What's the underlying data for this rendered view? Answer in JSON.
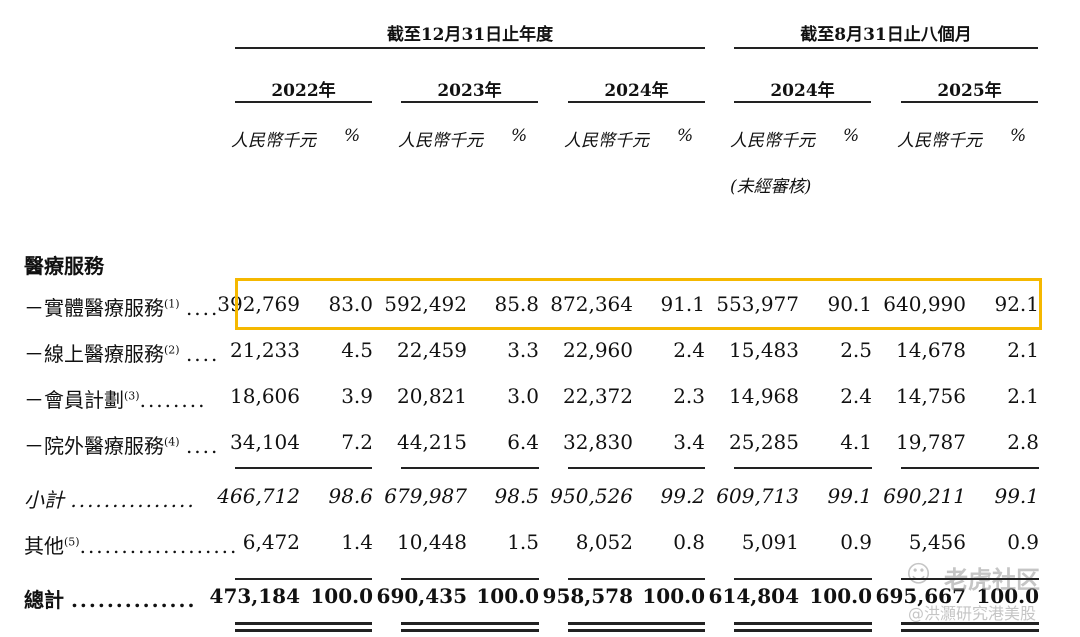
{
  "header": {
    "group1": "截至12月31日止年度",
    "group2": "截至8月31日止八個月"
  },
  "years": [
    "2022年",
    "2023年",
    "2024年",
    "2024年",
    "2025年"
  ],
  "units": {
    "rmb": "人民幣千元",
    "pct": "%",
    "unaudited": "(未經審核)"
  },
  "section_title": "醫療服務",
  "rows": [
    {
      "label": "－實體醫療服務",
      "note": "(1)",
      "dots": "....",
      "values": [
        "392,769",
        "83.0",
        "592,492",
        "85.8",
        "872,364",
        "91.1",
        "553,977",
        "90.1",
        "640,990",
        "92.1"
      ]
    },
    {
      "label": "－線上醫療服務",
      "note": "(2)",
      "dots": "....",
      "values": [
        "21,233",
        "4.5",
        "22,459",
        "3.3",
        "22,960",
        "2.4",
        "15,483",
        "2.5",
        "14,678",
        "2.1"
      ]
    },
    {
      "label": "－會員計劃",
      "note": "(3)",
      "dots": "........",
      "values": [
        "18,606",
        "3.9",
        "20,821",
        "3.0",
        "22,372",
        "2.3",
        "14,968",
        "2.4",
        "14,756",
        "2.1"
      ]
    },
    {
      "label": "－院外醫療服務",
      "note": "(4)",
      "dots": "....",
      "values": [
        "34,104",
        "7.2",
        "44,215",
        "6.4",
        "32,830",
        "3.4",
        "25,285",
        "4.1",
        "19,787",
        "2.8"
      ]
    },
    {
      "label": "小計",
      "note": "",
      "dots": "...............",
      "values": [
        "466,712",
        "98.6",
        "679,987",
        "98.5",
        "950,526",
        "99.2",
        "609,713",
        "99.1",
        "690,211",
        "99.1"
      ]
    },
    {
      "label": "其他",
      "note": "(5)",
      "dots": "...................",
      "values": [
        "6,472",
        "1.4",
        "10,448",
        "1.5",
        "8,052",
        "0.8",
        "5,091",
        "0.9",
        "5,456",
        "0.9"
      ]
    },
    {
      "label": "總計",
      "note": "",
      "dots": "..............",
      "values": [
        "473,184",
        "100.0",
        "690,435",
        "100.0",
        "958,578",
        "100.0",
        "614,804",
        "100.0",
        "695,667",
        "100.0"
      ]
    }
  ],
  "watermark": {
    "brand": "老虎社区",
    "sub": "@洪灝研究港美股"
  }
}
